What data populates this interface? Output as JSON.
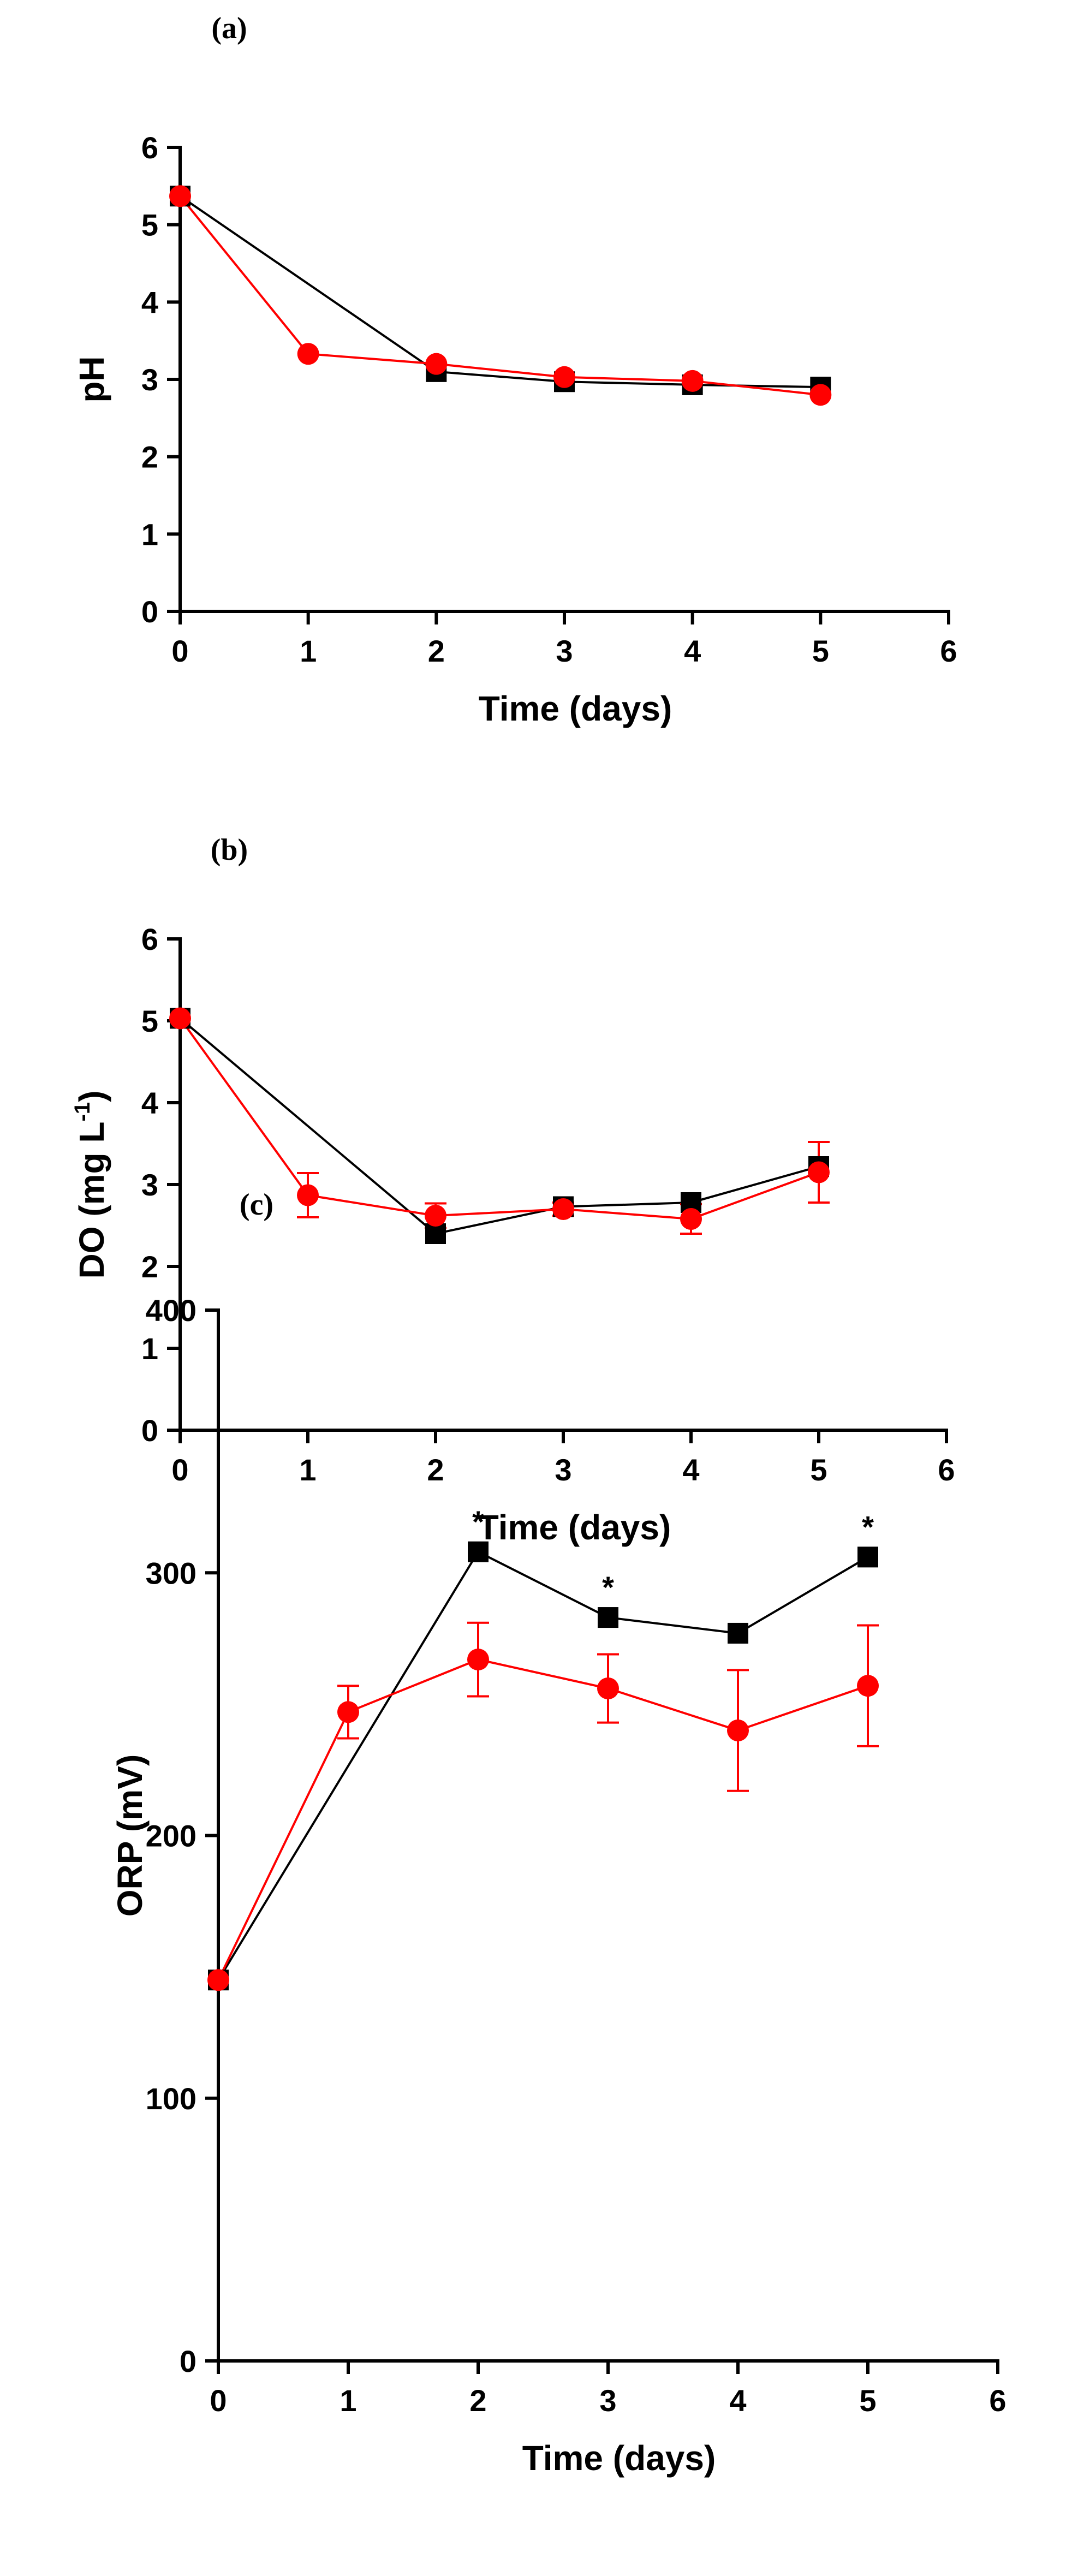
{
  "chart_data": [
    {
      "type": "line",
      "panel_label": "(a)",
      "xlabel": "Time (days)",
      "ylabel": "pH",
      "ylabel_parts": [
        "pH"
      ],
      "xlim": [
        0,
        6
      ],
      "ylim": [
        0,
        6
      ],
      "xticks": [
        0,
        1,
        2,
        3,
        4,
        5,
        6
      ],
      "yticks": [
        0,
        1,
        2,
        3,
        4,
        5,
        6
      ],
      "x_tick_labels": [
        "0",
        "1",
        "2",
        "3",
        "4",
        "5",
        "6"
      ],
      "y_tick_labels": [
        "0",
        "1",
        "2",
        "3",
        "4",
        "5",
        "6"
      ],
      "grid": false,
      "series": [
        {
          "name": "black-squares",
          "marker": "square",
          "color": "#000000",
          "x": [
            0,
            2,
            3,
            4,
            5
          ],
          "values": [
            5.37,
            3.1,
            2.97,
            2.93,
            2.9
          ],
          "errors": [
            0,
            0,
            0,
            0,
            0
          ]
        },
        {
          "name": "red-circles",
          "marker": "circle",
          "color": "#ff0000",
          "x": [
            0,
            1,
            2,
            3,
            4,
            5
          ],
          "values": [
            5.37,
            3.33,
            3.2,
            3.03,
            2.98,
            2.8
          ],
          "errors": [
            0,
            0,
            0,
            0,
            0,
            0
          ]
        }
      ],
      "annotations": []
    },
    {
      "type": "line",
      "panel_label": "(b)",
      "xlabel": "Time (days)",
      "ylabel": "DO (mg L-1)",
      "ylabel_parts": [
        "DO (mg L",
        "-1",
        ")"
      ],
      "xlim": [
        0,
        6
      ],
      "ylim": [
        0,
        6
      ],
      "xticks": [
        0,
        1,
        2,
        3,
        4,
        5,
        6
      ],
      "yticks": [
        0,
        1,
        2,
        3,
        4,
        5,
        6
      ],
      "x_tick_labels": [
        "0",
        "1",
        "2",
        "3",
        "4",
        "5",
        "6"
      ],
      "y_tick_labels": [
        "0",
        "1",
        "2",
        "3",
        "4",
        "5",
        "6"
      ],
      "grid": false,
      "series": [
        {
          "name": "black-squares",
          "marker": "square",
          "color": "#000000",
          "x": [
            0,
            2,
            3,
            4,
            5
          ],
          "values": [
            5.03,
            2.4,
            2.73,
            2.78,
            3.22
          ],
          "errors": [
            0,
            0,
            0,
            0,
            0
          ]
        },
        {
          "name": "red-circles",
          "marker": "circle",
          "color": "#ff0000",
          "x": [
            0,
            1,
            2,
            3,
            4,
            5
          ],
          "values": [
            5.03,
            2.87,
            2.62,
            2.7,
            2.58,
            3.15
          ],
          "errors": [
            0,
            0.27,
            0.15,
            0.08,
            0.18,
            0.37
          ]
        }
      ],
      "annotations": []
    },
    {
      "type": "line",
      "panel_label": "(c)",
      "xlabel": "Time (days)",
      "ylabel": "ORP (mV)",
      "ylabel_parts": [
        "ORP (mV)"
      ],
      "xlim": [
        0,
        6
      ],
      "ylim": [
        0,
        400
      ],
      "xticks": [
        0,
        1,
        2,
        3,
        4,
        5,
        6
      ],
      "yticks": [
        0,
        100,
        200,
        300,
        400
      ],
      "x_tick_labels": [
        "0",
        "1",
        "2",
        "3",
        "4",
        "5",
        "6"
      ],
      "y_tick_labels": [
        "0",
        "100",
        "200",
        "300",
        "400"
      ],
      "grid": false,
      "series": [
        {
          "name": "black-squares",
          "marker": "square",
          "color": "#000000",
          "x": [
            0,
            2,
            3,
            4,
            5
          ],
          "values": [
            145,
            308,
            283,
            277,
            306
          ],
          "errors": [
            0,
            0,
            0,
            0,
            0
          ]
        },
        {
          "name": "red-circles",
          "marker": "circle",
          "color": "#ff0000",
          "x": [
            0,
            1,
            2,
            3,
            4,
            5
          ],
          "values": [
            145,
            247,
            267,
            256,
            240,
            257
          ],
          "errors": [
            0,
            10,
            14,
            13,
            23,
            23
          ]
        }
      ],
      "annotations": [
        {
          "x": 2,
          "y": 308,
          "text": "*"
        },
        {
          "x": 3,
          "y": 283,
          "text": "*"
        },
        {
          "x": 5,
          "y": 306,
          "text": "*"
        }
      ]
    }
  ]
}
